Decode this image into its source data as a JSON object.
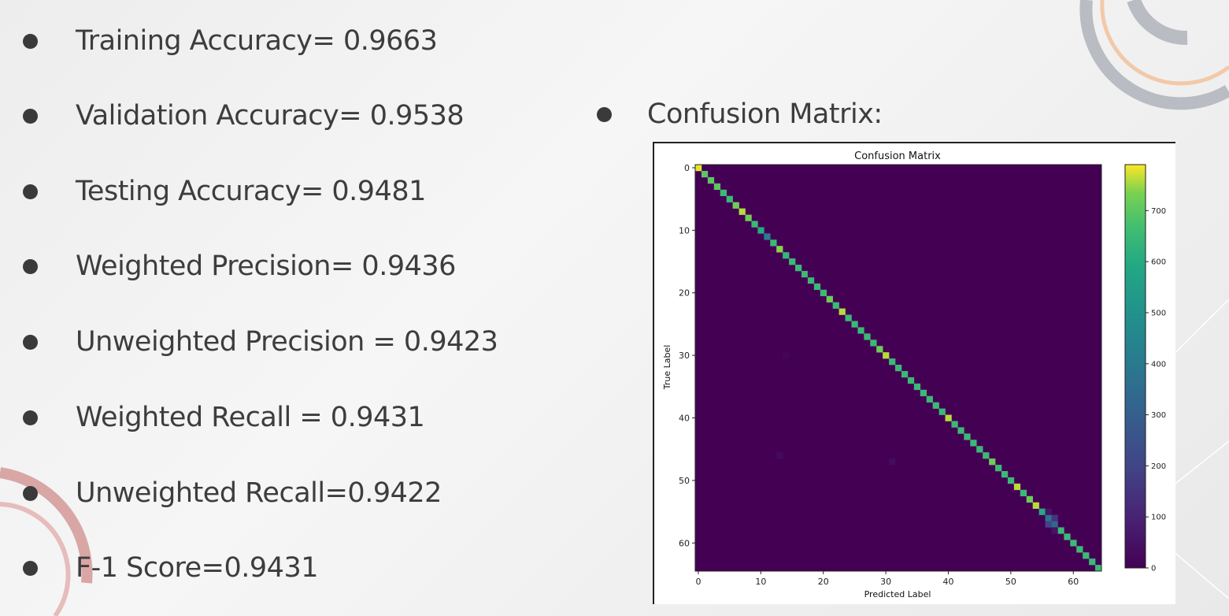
{
  "metrics": [
    {
      "label": "Training Accuracy= 0.9663"
    },
    {
      "label": "Validation Accuracy= 0.9538"
    },
    {
      "label": "Testing Accuracy= 0.9481"
    },
    {
      "label": "Weighted Precision= 0.9436"
    },
    {
      "label": "Unweighted Precision = 0.9423"
    },
    {
      "label": "Weighted Recall = 0.9431"
    },
    {
      "label": "Unweighted Recall=0.9422"
    },
    {
      "label": "F-1 Score=0.9431"
    }
  ],
  "confusion_heading": "Confusion Matrix:",
  "colors": {
    "background_cell": "#440154",
    "bullet": "#3a3a3a",
    "text": "#3d3d3d"
  },
  "chart_data": {
    "type": "heatmap",
    "title": "Confusion Matrix",
    "xlabel": "Predicted Label",
    "ylabel": "True Label",
    "n_classes": 65,
    "x_ticks": [
      0,
      10,
      20,
      30,
      40,
      50,
      60
    ],
    "y_ticks": [
      0,
      10,
      20,
      30,
      40,
      50,
      60
    ],
    "colormap": "viridis",
    "colorbar": {
      "min": 0,
      "max": 790,
      "ticks": [
        0,
        100,
        200,
        300,
        400,
        500,
        600,
        700
      ]
    },
    "diagonal": [
      780,
      700,
      700,
      700,
      650,
      650,
      720,
      760,
      720,
      650,
      600,
      420,
      650,
      740,
      640,
      650,
      650,
      650,
      650,
      650,
      650,
      720,
      650,
      760,
      650,
      650,
      650,
      650,
      650,
      720,
      760,
      650,
      650,
      650,
      650,
      650,
      650,
      650,
      650,
      650,
      760,
      650,
      650,
      650,
      650,
      650,
      650,
      720,
      650,
      650,
      650,
      760,
      650,
      720,
      760,
      600,
      380,
      330,
      650,
      650,
      650,
      650,
      650,
      650,
      650
    ],
    "off_diagonal": [
      {
        "row": 57,
        "col": 56,
        "value": 200
      },
      {
        "row": 56,
        "col": 57,
        "value": 150
      },
      {
        "row": 55,
        "col": 56,
        "value": 60
      },
      {
        "row": 58,
        "col": 57,
        "value": 50
      },
      {
        "row": 47,
        "col": 31,
        "value": 30
      },
      {
        "row": 46,
        "col": 13,
        "value": 25
      },
      {
        "row": 17,
        "col": 18,
        "value": 20
      },
      {
        "row": 30,
        "col": 14,
        "value": 15
      }
    ]
  }
}
